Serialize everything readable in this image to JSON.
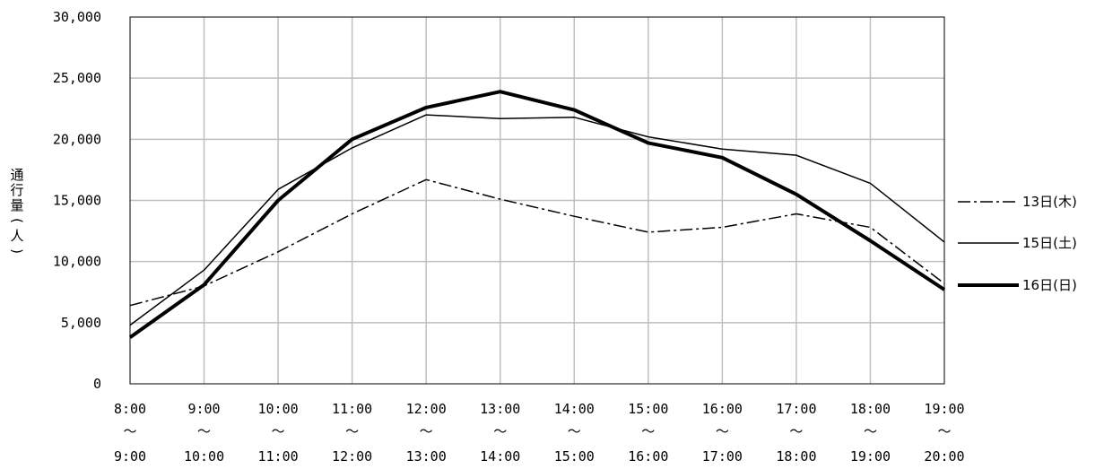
{
  "chart_data": {
    "type": "line",
    "x_ranges": [
      {
        "start": "8:00",
        "end": "9:00"
      },
      {
        "start": "9:00",
        "end": "10:00"
      },
      {
        "start": "10:00",
        "end": "11:00"
      },
      {
        "start": "11:00",
        "end": "12:00"
      },
      {
        "start": "12:00",
        "end": "13:00"
      },
      {
        "start": "13:00",
        "end": "14:00"
      },
      {
        "start": "14:00",
        "end": "15:00"
      },
      {
        "start": "15:00",
        "end": "16:00"
      },
      {
        "start": "16:00",
        "end": "17:00"
      },
      {
        "start": "17:00",
        "end": "18:00"
      },
      {
        "start": "18:00",
        "end": "19:00"
      },
      {
        "start": "19:00",
        "end": "20:00"
      }
    ],
    "tilde": "～",
    "series": [
      {
        "name": "13日(木)",
        "style": "dash-dot",
        "values": [
          6400,
          8000,
          10800,
          13900,
          16700,
          15100,
          13700,
          12400,
          12800,
          13900,
          12800,
          8200
        ]
      },
      {
        "name": "15日(土)",
        "style": "thin",
        "values": [
          4800,
          9300,
          15900,
          19300,
          22000,
          21700,
          21800,
          20200,
          19200,
          18700,
          16400,
          11600
        ]
      },
      {
        "name": "16日(日)",
        "style": "thick",
        "values": [
          3800,
          8100,
          15000,
          20000,
          22600,
          23900,
          22400,
          19700,
          18500,
          15500,
          11700,
          7700
        ]
      }
    ],
    "ylim": [
      0,
      30000
    ],
    "y_ticks": [
      {
        "value": 0,
        "label": "0"
      },
      {
        "value": 5000,
        "label": "5,000"
      },
      {
        "value": 10000,
        "label": "10,000"
      },
      {
        "value": 15000,
        "label": "15,000"
      },
      {
        "value": 20000,
        "label": "20,000"
      },
      {
        "value": 25000,
        "label": "25,000"
      },
      {
        "value": 30000,
        "label": "30,000"
      }
    ],
    "ylabel": "通行量(人)",
    "grid": true,
    "legend_position": "right",
    "colors": {
      "line": "#000000",
      "grid": "#bfbfbf",
      "axis": "#000000"
    }
  }
}
